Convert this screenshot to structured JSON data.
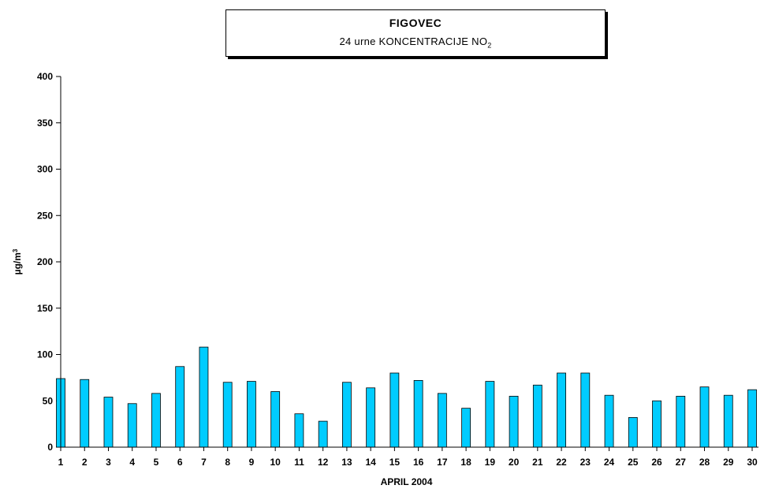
{
  "chart_data": {
    "type": "bar",
    "title": "FIGOVEC",
    "subtitle_prefix": "24 urne KONCENTRACIJE NO",
    "subtitle_subscript": "2",
    "xlabel": "APRIL 2004",
    "ylabel_prefix": "µg/m",
    "ylabel_superscript": "3",
    "ylim": [
      0,
      400
    ],
    "yticks": [
      0,
      50,
      100,
      150,
      200,
      250,
      300,
      350,
      400
    ],
    "categories": [
      "1",
      "2",
      "3",
      "4",
      "5",
      "6",
      "7",
      "8",
      "9",
      "10",
      "11",
      "12",
      "13",
      "14",
      "15",
      "16",
      "17",
      "18",
      "19",
      "20",
      "21",
      "22",
      "23",
      "24",
      "25",
      "26",
      "27",
      "28",
      "29",
      "30"
    ],
    "values": [
      74,
      73,
      54,
      47,
      58,
      87,
      108,
      70,
      71,
      60,
      36,
      28,
      70,
      64,
      80,
      72,
      58,
      42,
      71,
      55,
      67,
      80,
      80,
      56,
      32,
      50,
      55,
      65,
      56,
      62
    ],
    "bar_color": "#00CCFF",
    "bar_edge_color": "#000000",
    "grid": false,
    "legend": "none"
  }
}
